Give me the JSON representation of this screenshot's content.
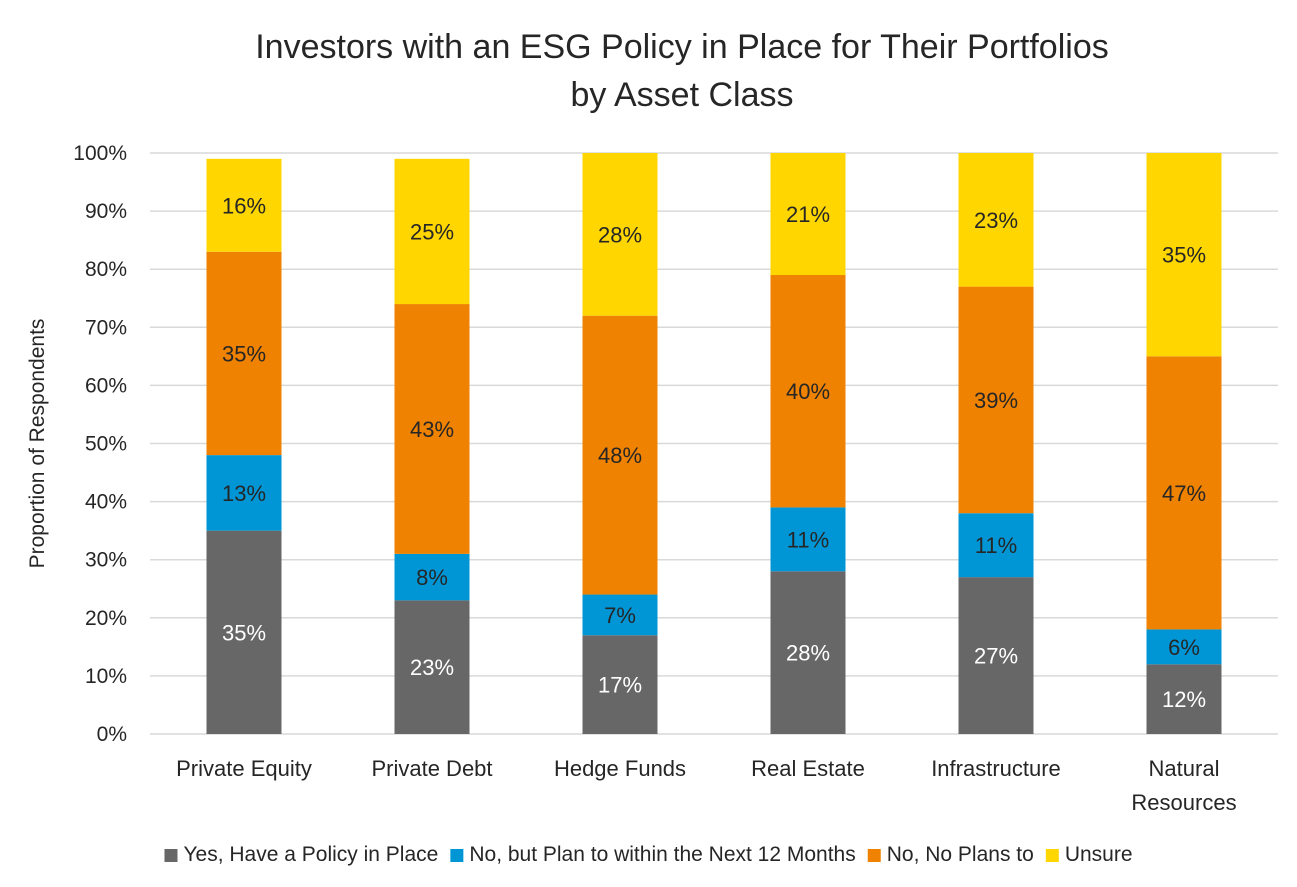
{
  "chart_data": {
    "type": "bar",
    "stacked": true,
    "title": "Investors with an ESG Policy in Place for Their Portfolios by Asset Class",
    "title_lines": [
      "Investors with an ESG Policy in Place for Their Portfolios",
      "by Asset Class"
    ],
    "xlabel": "",
    "ylabel": "Proportion of Respondents",
    "ylim": [
      0,
      100
    ],
    "y_ticks": [
      "0%",
      "10%",
      "20%",
      "30%",
      "40%",
      "50%",
      "60%",
      "70%",
      "80%",
      "90%",
      "100%"
    ],
    "grid": true,
    "legend_position": "bottom",
    "categories": [
      "Private Equity",
      "Private Debt",
      "Hedge Funds",
      "Real Estate",
      "Infrastructure",
      "Natural Resources"
    ],
    "category_lines": [
      [
        "Private Equity"
      ],
      [
        "Private Debt"
      ],
      [
        "Hedge Funds"
      ],
      [
        "Real Estate"
      ],
      [
        "Infrastructure"
      ],
      [
        "Natural",
        "Resources"
      ]
    ],
    "series": [
      {
        "name": "Yes, Have a Policy in Place",
        "color": "#686767",
        "label_color": "#ffffff",
        "values": [
          35,
          23,
          17,
          28,
          27,
          12
        ],
        "labels": [
          "35%",
          "23%",
          "17%",
          "28%",
          "27%",
          "12%"
        ]
      },
      {
        "name": "No, but Plan to within the Next 12 Months",
        "color": "#0096d6",
        "label_color": "#262626",
        "values": [
          13,
          8,
          7,
          11,
          11,
          6
        ],
        "labels": [
          "13%",
          "8%",
          "7%",
          "11%",
          "11%",
          "6%"
        ]
      },
      {
        "name": "No, No Plans to",
        "color": "#ef8200",
        "label_color": "#262626",
        "values": [
          35,
          43,
          48,
          40,
          39,
          47
        ],
        "labels": [
          "35%",
          "43%",
          "48%",
          "40%",
          "39%",
          "47%"
        ]
      },
      {
        "name": "Unsure",
        "color": "#ffd600",
        "label_color": "#262626",
        "values": [
          16,
          25,
          28,
          21,
          23,
          35
        ],
        "labels": [
          "16%",
          "25%",
          "28%",
          "21%",
          "23%",
          "35%"
        ]
      }
    ]
  }
}
